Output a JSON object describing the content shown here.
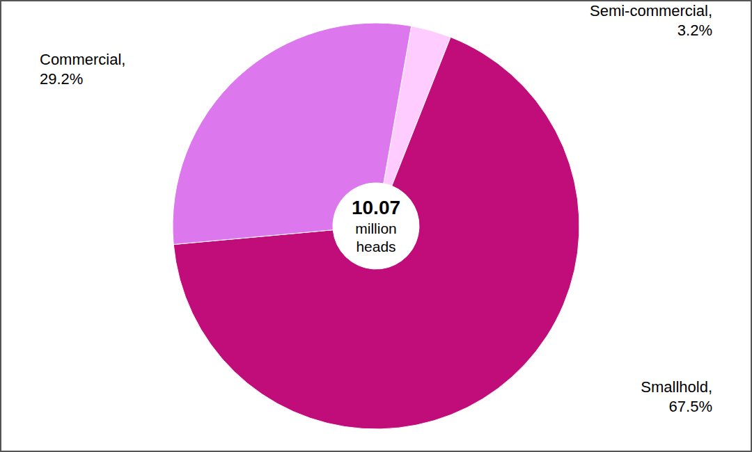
{
  "chart_data": {
    "type": "pie",
    "categories": [
      "Semi-commercial,",
      "Smallhold,",
      "Commercial,"
    ],
    "values": [
      3.2,
      67.5,
      29.2
    ],
    "value_labels": [
      "3.2%",
      "67.5%",
      "29.2%"
    ],
    "colors": [
      "#ffccff",
      "#c00d7a",
      "#dd77ee"
    ],
    "data_labels": true,
    "center_text": {
      "value": 10.07,
      "lines": [
        "million",
        "heads"
      ]
    }
  }
}
